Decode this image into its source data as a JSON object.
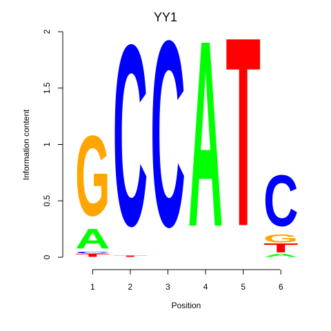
{
  "chart_data": {
    "type": "sequence-logo",
    "title": "YY1",
    "xlabel": "Position",
    "ylabel": "Information content",
    "ylim": [
      0,
      2
    ],
    "yticks": [
      "0",
      "0.5",
      "1",
      "1.5",
      "2"
    ],
    "ytick_values": [
      0,
      0.5,
      1,
      1.5,
      2
    ],
    "positions": [
      {
        "label": "1",
        "letters": [
          {
            "base": "T",
            "height": 0.03
          },
          {
            "base": "C",
            "height": 0.02
          },
          {
            "base": "A",
            "height": 0.2
          },
          {
            "base": "G",
            "height": 0.82
          }
        ]
      },
      {
        "label": "2",
        "letters": [
          {
            "base": "T",
            "height": 0.015
          },
          {
            "base": "C",
            "height": 1.85
          }
        ]
      },
      {
        "label": "3",
        "letters": [
          {
            "base": "C",
            "height": 1.9
          }
        ]
      },
      {
        "label": "4",
        "letters": [
          {
            "base": "A",
            "height": 1.9
          }
        ]
      },
      {
        "label": "5",
        "letters": [
          {
            "base": "T",
            "height": 1.93
          }
        ]
      },
      {
        "label": "6",
        "letters": [
          {
            "base": "A",
            "height": 0.03
          },
          {
            "base": "T",
            "height": 0.09
          },
          {
            "base": "G",
            "height": 0.08
          },
          {
            "base": "C",
            "height": 0.52
          }
        ]
      }
    ],
    "colors": {
      "A": "#00ff00",
      "C": "#0000ff",
      "G": "#ffa500",
      "T": "#ff0000"
    }
  }
}
